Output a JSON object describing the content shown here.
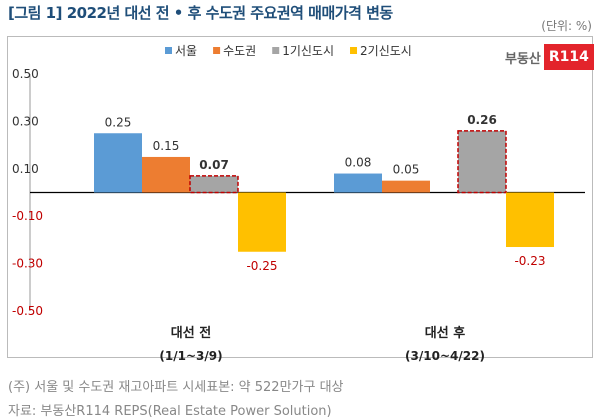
{
  "title": "[그림 1] 2022년 대선 전 • 후 수도권 주요권역 매매가격 변동",
  "unit": "(단위: %)",
  "logo": {
    "text": "부동산",
    "badge": "R114"
  },
  "notes": [
    "(주) 서울 및 수도권 재고아파트 시세표본: 약 522만가구 대상",
    "자료: 부동산R114 REPS(Real Estate Power Solution)"
  ],
  "chart_data": {
    "type": "bar",
    "categories": [
      [
        "대선 전",
        "(1/1~3/9)"
      ],
      [
        "대선 후",
        "(3/10~4/22)"
      ]
    ],
    "series": [
      {
        "name": "서울",
        "color": "#5b9bd5",
        "values": [
          0.25,
          0.08
        ]
      },
      {
        "name": "수도권",
        "color": "#ed7d31",
        "values": [
          0.15,
          0.05
        ]
      },
      {
        "name": "1기신도시",
        "color": "#a5a5a5",
        "values": [
          0.07,
          0.26
        ],
        "highlight": true
      },
      {
        "name": "2기신도시",
        "color": "#ffc000",
        "values": [
          -0.25,
          -0.23
        ]
      }
    ],
    "data_labels": [
      [
        "0.25",
        "0.15",
        "0.07",
        "-0.25"
      ],
      [
        "0.08",
        "0.05",
        "0.26",
        "-0.23"
      ]
    ],
    "yticks": [
      "0.50",
      "0.30",
      "0.10",
      "-0.10",
      "-0.30",
      "-0.50"
    ],
    "ylim": [
      -0.5,
      0.5
    ],
    "legend": "top",
    "grid": false
  }
}
